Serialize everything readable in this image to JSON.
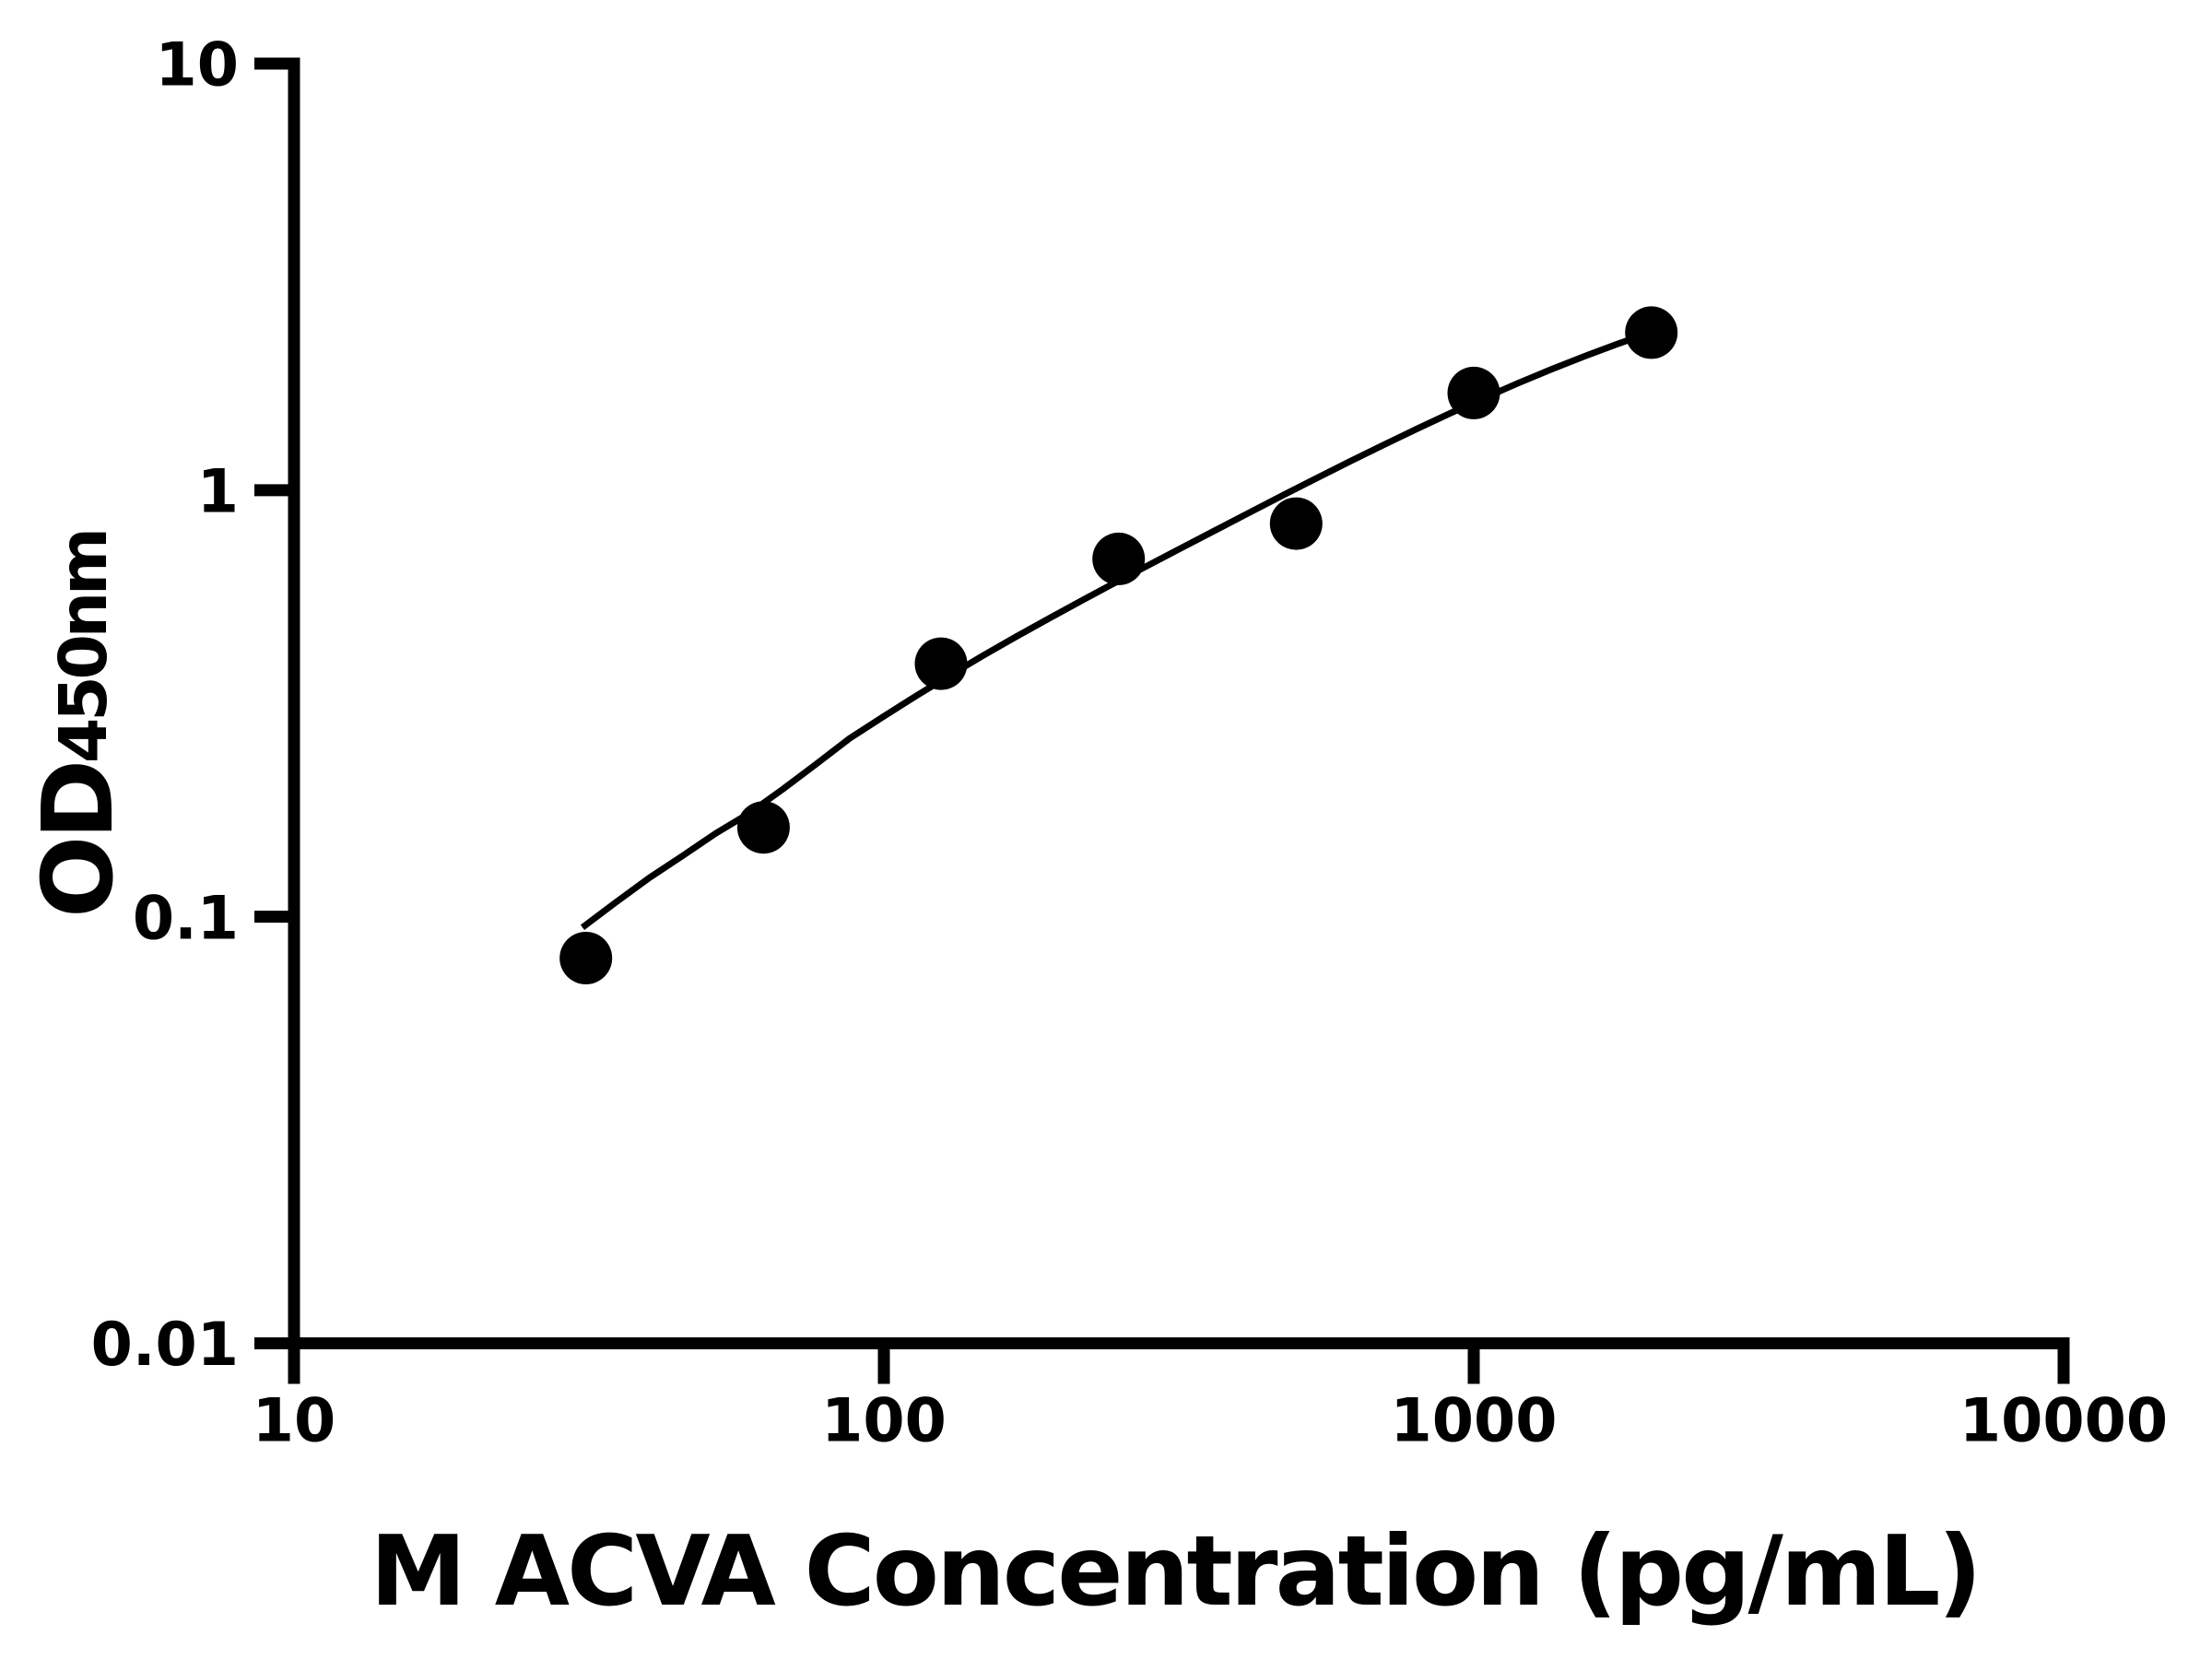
{
  "figure": {
    "background_color": "#ffffff",
    "ink_color": "#000000"
  },
  "chart_data": {
    "type": "scatter",
    "title": "",
    "xlabel": "M ACVA Concentration (pg/mL)",
    "ylabel": "OD450nm",
    "ylabel_parts": {
      "main": "OD",
      "sub": "450nm"
    },
    "x_scale": "log",
    "y_scale": "log",
    "xlim": [
      10,
      10000
    ],
    "ylim": [
      0.01,
      10
    ],
    "grid": false,
    "legend": false,
    "x_ticks": [
      {
        "value": 10,
        "label": "10"
      },
      {
        "value": 100,
        "label": "100"
      },
      {
        "value": 1000,
        "label": "1000"
      },
      {
        "value": 10000,
        "label": "10000"
      }
    ],
    "y_ticks": [
      {
        "value": 0.01,
        "label": "0.01"
      },
      {
        "value": 0.1,
        "label": "0.1"
      },
      {
        "value": 1,
        "label": "1"
      },
      {
        "value": 10,
        "label": "10"
      }
    ],
    "series": [
      {
        "name": "standards",
        "kind": "scatter",
        "marker": "filled-circle",
        "color": "#000000",
        "x": [
          31.25,
          62.5,
          125,
          250,
          500,
          1000,
          2000
        ],
        "y": [
          0.08,
          0.162,
          0.392,
          0.69,
          0.835,
          1.69,
          2.34
        ]
      },
      {
        "name": "fit-curve",
        "kind": "line",
        "color": "#000000",
        "points": [
          [
            30.84,
            0.0944
          ],
          [
            35.13,
            0.1081
          ],
          [
            40.02,
            0.1234
          ],
          [
            45.59,
            0.139
          ],
          [
            51.94,
            0.157
          ],
          [
            59.17,
            0.175
          ],
          [
            67.4,
            0.199
          ],
          [
            76.78,
            0.228
          ],
          [
            87.47,
            0.2618
          ],
          [
            99.65,
            0.2942
          ],
          [
            113.52,
            0.3296
          ],
          [
            129.32,
            0.368
          ],
          [
            147.33,
            0.4094
          ],
          [
            167.84,
            0.454
          ],
          [
            191.2,
            0.502
          ],
          [
            217.81,
            0.5537
          ],
          [
            248.13,
            0.6096
          ],
          [
            282.68,
            0.6702
          ],
          [
            322.03,
            0.7364
          ],
          [
            366.85,
            0.8089
          ],
          [
            417.92,
            0.8882
          ],
          [
            476.1,
            0.9747
          ],
          [
            542.37,
            1.0683
          ],
          [
            617.87,
            1.1694
          ],
          [
            703.88,
            1.2778
          ],
          [
            801.87,
            1.3933
          ],
          [
            913.49,
            1.5157
          ],
          [
            1040.65,
            1.6443
          ],
          [
            1185.51,
            1.7784
          ],
          [
            1350.54,
            1.917
          ],
          [
            1538.54,
            2.0586
          ],
          [
            1752.71,
            2.2018
          ],
          [
            1996.7,
            2.3447
          ]
        ]
      }
    ]
  }
}
